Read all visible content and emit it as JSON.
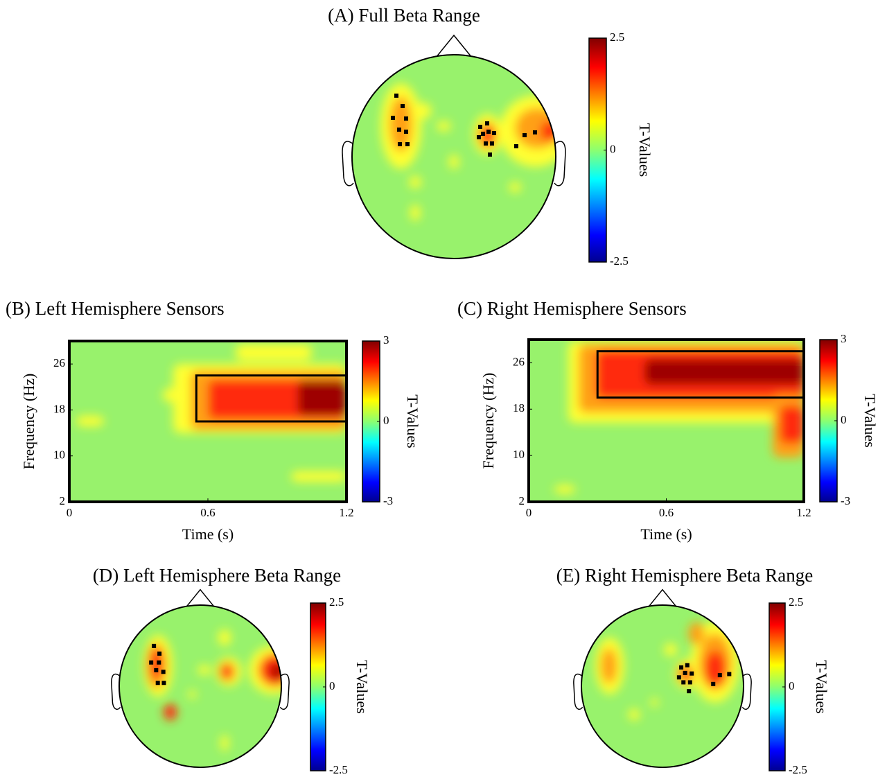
{
  "chart_data": [
    {
      "type": "topoplot",
      "title": "(A) Full Beta Range",
      "colorbar_label": "T-Values",
      "clim": [
        -2.5,
        2.5
      ],
      "cticks": [
        -2.5,
        0,
        2.5
      ]
    },
    {
      "type": "heatmap",
      "title": "(B) Left Hemisphere Sensors",
      "xlabel": "Time (s)",
      "ylabel": "Frequency (Hz)",
      "xlim": [
        0,
        1.2
      ],
      "ylim": [
        2,
        30
      ],
      "xticks": [
        0,
        0.6,
        1.2
      ],
      "yticks": [
        2,
        10,
        18,
        26
      ],
      "highlight": [
        0.55,
        1.2,
        16,
        24
      ],
      "colorbar_label": "T-Values",
      "clim": [
        -3,
        3
      ],
      "cticks": [
        -3,
        0,
        3
      ]
    },
    {
      "type": "heatmap",
      "title": "(C) Right Hemisphere Sensors",
      "xlabel": "Time (s)",
      "ylabel": "Frequency (Hz)",
      "xlim": [
        0,
        1.2
      ],
      "ylim": [
        2,
        30
      ],
      "xticks": [
        0,
        0.6,
        1.2
      ],
      "yticks": [
        2,
        10,
        18,
        26
      ],
      "highlight": [
        0.3,
        1.2,
        20,
        28
      ],
      "colorbar_label": "T-Values",
      "clim": [
        -3,
        3
      ],
      "cticks": [
        -3,
        0,
        3
      ]
    },
    {
      "type": "topoplot",
      "title": "(D) Left Hemisphere Beta Range",
      "colorbar_label": "T-Values",
      "clim": [
        -2.5,
        2.5
      ],
      "cticks": [
        -2.5,
        0,
        2.5
      ]
    },
    {
      "type": "topoplot",
      "title": "(E) Right Hemisphere Beta Range",
      "colorbar_label": "T-Values",
      "clim": [
        -2.5,
        2.5
      ],
      "cticks": [
        -2.5,
        0,
        2.5
      ]
    }
  ]
}
